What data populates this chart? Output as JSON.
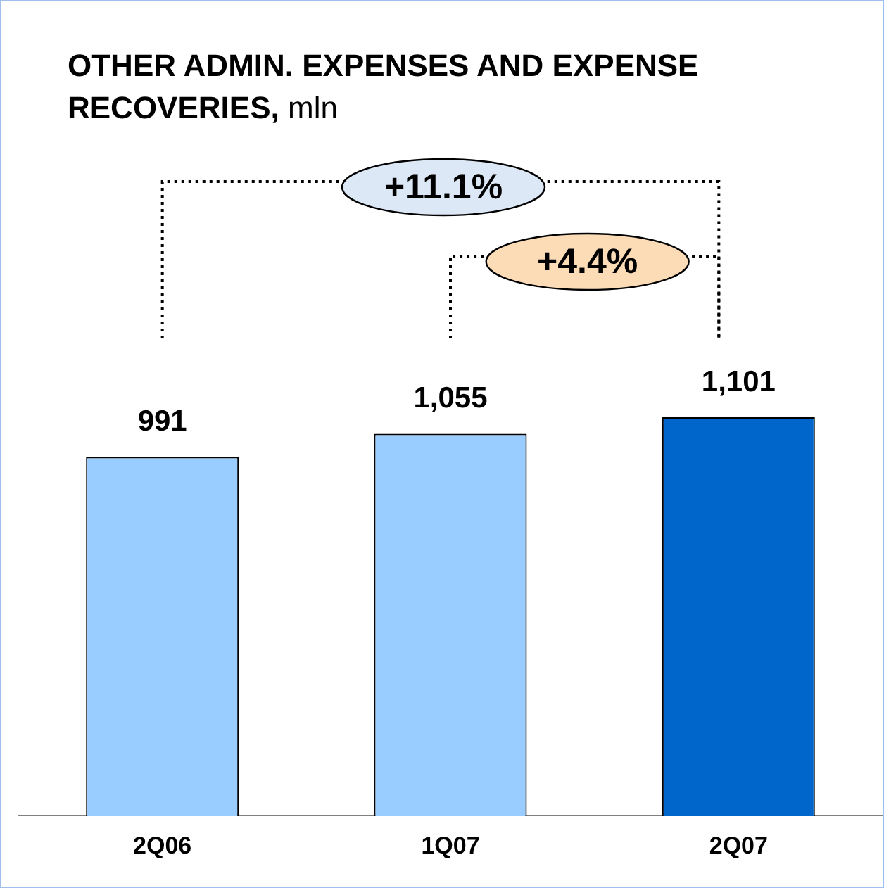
{
  "chart_data": {
    "type": "bar",
    "title": "OTHER ADMIN. EXPENSES AND EXPENSE RECOVERIES, mln",
    "categories": [
      "2Q06",
      "1Q07",
      "2Q07"
    ],
    "values": [
      991,
      1055,
      1101
    ],
    "colors": [
      "#99ccff",
      "#99ccff",
      "#0066cc"
    ],
    "value_labels": [
      "991",
      "1,055",
      "1,101"
    ],
    "tick_labels": "x",
    "grid": false,
    "legend": false,
    "annotations": [
      "+11.1%",
      "+4.4%"
    ]
  }
}
